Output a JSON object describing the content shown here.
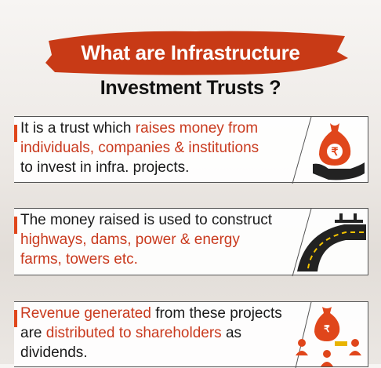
{
  "title": {
    "line1": "What are Infrastructure",
    "line2": "Investment Trusts ?"
  },
  "cards": [
    {
      "lines": [
        [
          {
            "text": "It is a trust which ",
            "highlight": false
          },
          {
            "text": "raises money from",
            "highlight": true
          }
        ],
        [
          {
            "text": "individuals, companies & institutions",
            "highlight": true
          }
        ],
        [
          {
            "text": "to invest in infra. projects.",
            "highlight": false
          }
        ]
      ]
    },
    {
      "lines": [
        [
          {
            "text": "The money raised is used to construct",
            "highlight": false
          }
        ],
        [
          {
            "text": "highways, dams, power & energy",
            "highlight": true
          }
        ],
        [
          {
            "text": "farms, towers etc.",
            "highlight": true
          }
        ]
      ]
    },
    {
      "lines": [
        [
          {
            "text": "Revenue generated",
            "highlight": true
          },
          {
            "text": " from these projects",
            "highlight": false
          }
        ],
        [
          {
            "text": "are ",
            "highlight": false
          },
          {
            "text": "distributed to shareholders",
            "highlight": true
          },
          {
            "text": " as",
            "highlight": false
          }
        ],
        [
          {
            "text": "dividends.",
            "highlight": false
          }
        ]
      ]
    }
  ]
}
